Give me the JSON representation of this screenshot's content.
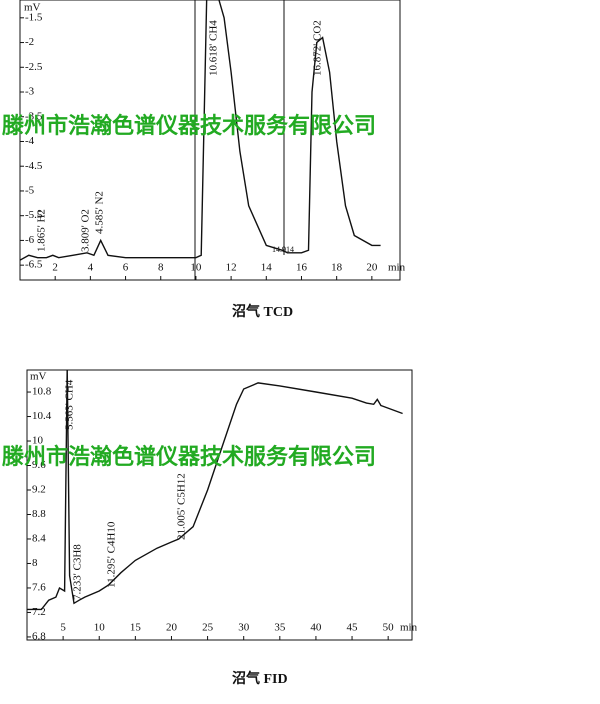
{
  "chart_data": [
    {
      "type": "line",
      "caption": "沼气 TCD",
      "ylabel": "mV",
      "xlabel": "min",
      "x": [
        0,
        0.5,
        1,
        1.5,
        1.865,
        2.2,
        3,
        3.809,
        4.2,
        4.585,
        5,
        6,
        8,
        10,
        10.3,
        10.5,
        10.618,
        11.2,
        11.6,
        12,
        12.5,
        13,
        14,
        14.914,
        15.2,
        16,
        16.4,
        16.6,
        16.872,
        17.2,
        17.6,
        18,
        18.5,
        19,
        20,
        20.5
      ],
      "series": [
        {
          "color": "#111111",
          "values": [
            -6.4,
            -6.3,
            -6.35,
            -6.35,
            -6.3,
            -6.35,
            -6.3,
            -6.25,
            -6.3,
            -6.0,
            -6.3,
            -6.35,
            -6.35,
            -6.35,
            -6.3,
            -3.0,
            -1.0,
            -1.0,
            -1.5,
            -2.6,
            -4.2,
            -5.3,
            -6.1,
            -6.2,
            -6.25,
            -6.25,
            -6.2,
            -3.0,
            -2.0,
            -1.9,
            -2.6,
            -4.0,
            -5.3,
            -5.9,
            -6.1,
            -6.1
          ]
        }
      ],
      "xlim": [
        0,
        21.6
      ],
      "ylim": [
        -6.8,
        -1.14
      ],
      "xticks": [
        2,
        4,
        6,
        8,
        10,
        12,
        14,
        16,
        18,
        20
      ],
      "yticks": [
        -6.5,
        -6,
        -5.5,
        -5,
        -4.5,
        -4,
        -3.5,
        -3,
        -2.5,
        -2,
        -1.5
      ],
      "annotations": [
        "1.865' H2",
        "3.809' O2",
        "4.585' N2",
        "10.618' CH4",
        "14.914",
        "16.872' CO2"
      ]
    },
    {
      "type": "line",
      "caption": "沼气 FID",
      "ylabel": "mV",
      "xlabel": "min",
      "x": [
        0,
        2,
        3,
        4,
        4.5,
        5.2,
        5.563,
        5.9,
        6.5,
        7.233,
        8,
        10,
        11.295,
        13,
        15,
        18,
        20,
        21.005,
        23,
        25,
        27,
        29,
        30,
        32,
        35,
        40,
        45,
        47,
        48,
        48.5,
        49,
        52
      ],
      "series": [
        {
          "color": "#111111",
          "values": [
            7.25,
            7.25,
            7.4,
            7.45,
            7.6,
            7.55,
            11.2,
            7.8,
            7.35,
            7.4,
            7.45,
            7.55,
            7.65,
            7.85,
            8.05,
            8.25,
            8.35,
            8.4,
            8.6,
            9.2,
            9.9,
            10.6,
            10.85,
            10.95,
            10.9,
            10.8,
            10.7,
            10.62,
            10.6,
            10.68,
            10.58,
            10.45
          ]
        }
      ],
      "xlim": [
        0,
        53.3
      ],
      "ylim": [
        6.75,
        11.16
      ],
      "xticks": [
        5,
        10,
        15,
        20,
        25,
        30,
        35,
        40,
        45,
        50
      ],
      "yticks": [
        6.8,
        7.2,
        7.6,
        8,
        8.4,
        8.8,
        9.2,
        9.6,
        10,
        10.4,
        10.8
      ],
      "annotations": [
        "5.563' CH4",
        "7.233' C3H8",
        "11.295' C4H10",
        "21.005' C5H12"
      ]
    }
  ],
  "watermark": "滕州市浩瀚色谱仪器技术服务有限公司"
}
